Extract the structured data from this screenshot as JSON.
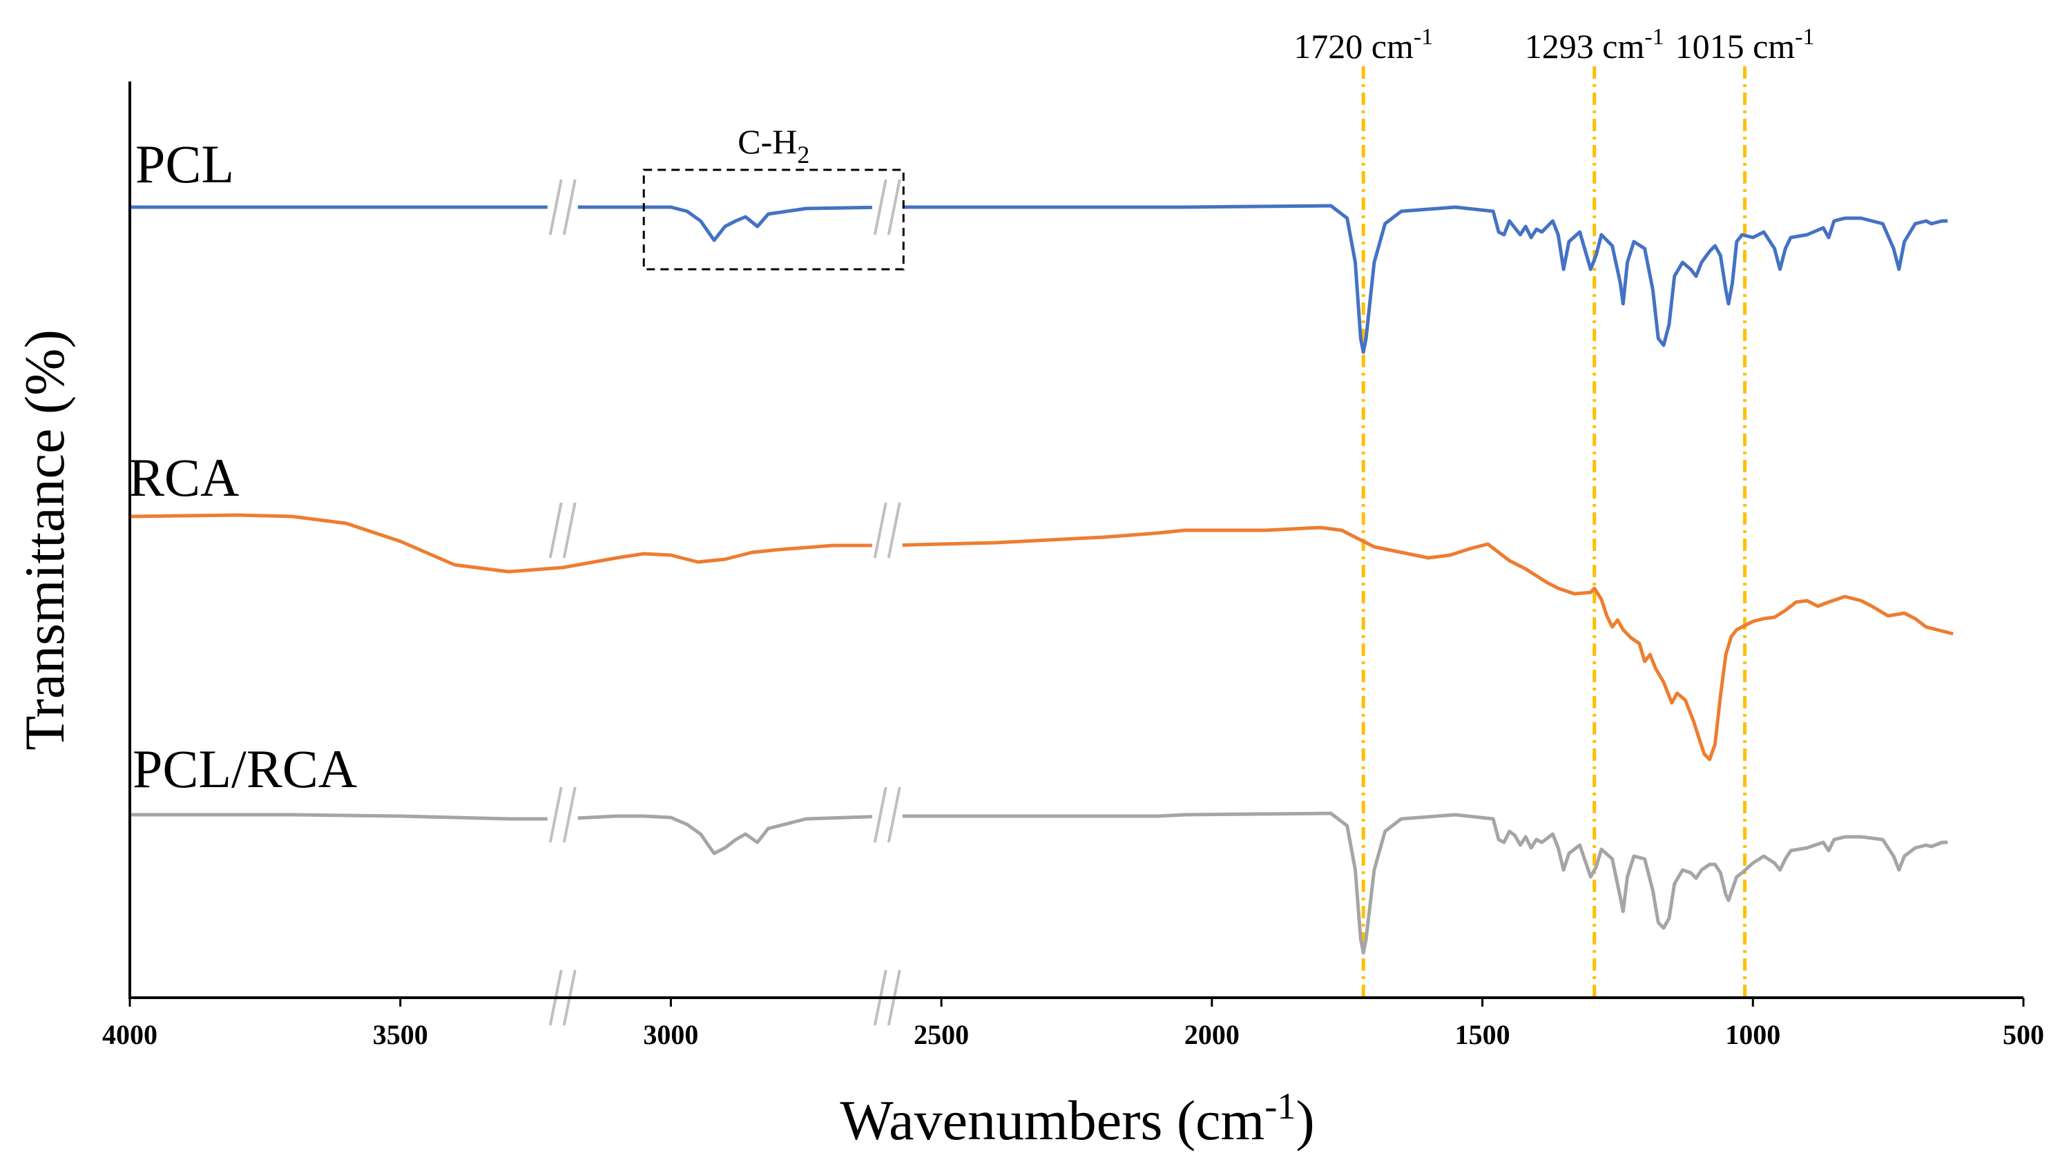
{
  "chart_data": {
    "type": "line",
    "title": "",
    "xlabel": "Wavenumbers (cm",
    "xlabel_sup": "-1",
    "xlabel_end": ")",
    "ylabel": "Transmittance (%)",
    "xlim": [
      4000,
      500
    ],
    "x_ticks": [
      "4000",
      "3500",
      "3000",
      "2500",
      "2000",
      "1500",
      "1000",
      "500"
    ],
    "y_axis": "arbitrary units, offset traces, no tick labels",
    "axis_breaks": [
      3200,
      2600
    ],
    "annotation": {
      "text": "C-H",
      "sub": "2",
      "range": [
        3050,
        2570
      ]
    },
    "peak_markers": [
      {
        "wavenumber": 1720,
        "label": "1720 cm",
        "sup": "-1"
      },
      {
        "wavenumber": 1293,
        "label": "1293 cm",
        "sup": "-1"
      },
      {
        "wavenumber": 1015,
        "label": "1015 cm",
        "sup": "-1"
      }
    ],
    "colors": {
      "PCL": "#4472C4",
      "RCA": "#ED7D31",
      "PCL/RCA": "#A5A5A5",
      "marker": "#FFC000"
    },
    "series": [
      {
        "name": "PCL",
        "baseline": 0,
        "points": [
          [
            4000,
            0
          ],
          [
            3280,
            0
          ],
          [
            3140,
            0
          ],
          [
            3000,
            0
          ],
          [
            2970,
            -3
          ],
          [
            2945,
            -10
          ],
          [
            2920,
            -24
          ],
          [
            2900,
            -14
          ],
          [
            2880,
            -10
          ],
          [
            2862,
            -7
          ],
          [
            2840,
            -14
          ],
          [
            2820,
            -5
          ],
          [
            2750,
            -1
          ],
          [
            2600,
            0
          ],
          [
            2480,
            0
          ],
          [
            2050,
            0
          ],
          [
            1780,
            1
          ],
          [
            1750,
            -8
          ],
          [
            1735,
            -40
          ],
          [
            1725,
            -95
          ],
          [
            1720,
            -105
          ],
          [
            1715,
            -95
          ],
          [
            1700,
            -40
          ],
          [
            1680,
            -12
          ],
          [
            1650,
            -3
          ],
          [
            1550,
            0
          ],
          [
            1480,
            -3
          ],
          [
            1470,
            -18
          ],
          [
            1460,
            -20
          ],
          [
            1450,
            -10
          ],
          [
            1440,
            -15
          ],
          [
            1430,
            -20
          ],
          [
            1420,
            -14
          ],
          [
            1410,
            -22
          ],
          [
            1400,
            -16
          ],
          [
            1390,
            -18
          ],
          [
            1370,
            -10
          ],
          [
            1360,
            -20
          ],
          [
            1350,
            -45
          ],
          [
            1340,
            -25
          ],
          [
            1320,
            -18
          ],
          [
            1300,
            -45
          ],
          [
            1290,
            -35
          ],
          [
            1280,
            -20
          ],
          [
            1260,
            -28
          ],
          [
            1245,
            -55
          ],
          [
            1240,
            -70
          ],
          [
            1232,
            -40
          ],
          [
            1220,
            -25
          ],
          [
            1200,
            -30
          ],
          [
            1185,
            -60
          ],
          [
            1175,
            -95
          ],
          [
            1165,
            -100
          ],
          [
            1155,
            -85
          ],
          [
            1145,
            -50
          ],
          [
            1130,
            -40
          ],
          [
            1115,
            -45
          ],
          [
            1105,
            -50
          ],
          [
            1095,
            -40
          ],
          [
            1080,
            -32
          ],
          [
            1070,
            -28
          ],
          [
            1060,
            -35
          ],
          [
            1050,
            -60
          ],
          [
            1045,
            -70
          ],
          [
            1038,
            -55
          ],
          [
            1030,
            -25
          ],
          [
            1020,
            -20
          ],
          [
            1000,
            -22
          ],
          [
            980,
            -18
          ],
          [
            960,
            -30
          ],
          [
            950,
            -45
          ],
          [
            940,
            -30
          ],
          [
            930,
            -22
          ],
          [
            900,
            -20
          ],
          [
            870,
            -15
          ],
          [
            860,
            -22
          ],
          [
            850,
            -10
          ],
          [
            830,
            -8
          ],
          [
            800,
            -8
          ],
          [
            760,
            -12
          ],
          [
            740,
            -30
          ],
          [
            730,
            -45
          ],
          [
            720,
            -25
          ],
          [
            700,
            -12
          ],
          [
            680,
            -10
          ],
          [
            670,
            -12
          ],
          [
            650,
            -10
          ],
          [
            640,
            -10
          ]
        ]
      },
      {
        "name": "RCA",
        "baseline": 0,
        "points": [
          [
            4000,
            0
          ],
          [
            3800,
            1
          ],
          [
            3700,
            0
          ],
          [
            3600,
            -5
          ],
          [
            3500,
            -18
          ],
          [
            3400,
            -35
          ],
          [
            3300,
            -40
          ],
          [
            3200,
            -37
          ],
          [
            3100,
            -30
          ],
          [
            3050,
            -27
          ],
          [
            3000,
            -28
          ],
          [
            2950,
            -33
          ],
          [
            2900,
            -31
          ],
          [
            2850,
            -26
          ],
          [
            2800,
            -24
          ],
          [
            2700,
            -21
          ],
          [
            2600,
            -21
          ],
          [
            2500,
            -20
          ],
          [
            2400,
            -19
          ],
          [
            2300,
            -17
          ],
          [
            2200,
            -15
          ],
          [
            2100,
            -12
          ],
          [
            2050,
            -10
          ],
          [
            1900,
            -10
          ],
          [
            1800,
            -8
          ],
          [
            1760,
            -10
          ],
          [
            1720,
            -18
          ],
          [
            1700,
            -22
          ],
          [
            1650,
            -26
          ],
          [
            1600,
            -30
          ],
          [
            1560,
            -28
          ],
          [
            1520,
            -23
          ],
          [
            1490,
            -20
          ],
          [
            1470,
            -26
          ],
          [
            1450,
            -32
          ],
          [
            1420,
            -38
          ],
          [
            1400,
            -43
          ],
          [
            1380,
            -48
          ],
          [
            1360,
            -52
          ],
          [
            1330,
            -56
          ],
          [
            1300,
            -55
          ],
          [
            1293,
            -52
          ],
          [
            1280,
            -60
          ],
          [
            1270,
            -72
          ],
          [
            1260,
            -80
          ],
          [
            1250,
            -75
          ],
          [
            1240,
            -82
          ],
          [
            1225,
            -88
          ],
          [
            1210,
            -92
          ],
          [
            1200,
            -105
          ],
          [
            1190,
            -100
          ],
          [
            1180,
            -110
          ],
          [
            1165,
            -120
          ],
          [
            1150,
            -135
          ],
          [
            1140,
            -128
          ],
          [
            1125,
            -133
          ],
          [
            1110,
            -148
          ],
          [
            1100,
            -160
          ],
          [
            1090,
            -172
          ],
          [
            1080,
            -176
          ],
          [
            1070,
            -165
          ],
          [
            1060,
            -130
          ],
          [
            1050,
            -100
          ],
          [
            1040,
            -87
          ],
          [
            1030,
            -82
          ],
          [
            1020,
            -80
          ],
          [
            1000,
            -76
          ],
          [
            980,
            -74
          ],
          [
            960,
            -73
          ],
          [
            940,
            -68
          ],
          [
            920,
            -62
          ],
          [
            900,
            -61
          ],
          [
            880,
            -65
          ],
          [
            860,
            -62
          ],
          [
            830,
            -58
          ],
          [
            800,
            -61
          ],
          [
            780,
            -65
          ],
          [
            750,
            -72
          ],
          [
            720,
            -70
          ],
          [
            700,
            -74
          ],
          [
            680,
            -80
          ],
          [
            650,
            -83
          ],
          [
            630,
            -85
          ]
        ]
      },
      {
        "name": "PCL/RCA",
        "baseline": 0,
        "points": [
          [
            4000,
            0
          ],
          [
            3700,
            0
          ],
          [
            3500,
            -1
          ],
          [
            3300,
            -3
          ],
          [
            3200,
            -3
          ],
          [
            3100,
            -1
          ],
          [
            3050,
            -1
          ],
          [
            3000,
            -2
          ],
          [
            2970,
            -7
          ],
          [
            2945,
            -14
          ],
          [
            2920,
            -28
          ],
          [
            2900,
            -24
          ],
          [
            2880,
            -18
          ],
          [
            2862,
            -14
          ],
          [
            2840,
            -20
          ],
          [
            2820,
            -10
          ],
          [
            2750,
            -3
          ],
          [
            2600,
            -1
          ],
          [
            2300,
            -1
          ],
          [
            2100,
            -1
          ],
          [
            2050,
            0
          ],
          [
            1780,
            1
          ],
          [
            1750,
            -8
          ],
          [
            1735,
            -40
          ],
          [
            1725,
            -90
          ],
          [
            1720,
            -100
          ],
          [
            1715,
            -90
          ],
          [
            1700,
            -40
          ],
          [
            1680,
            -12
          ],
          [
            1650,
            -3
          ],
          [
            1550,
            0
          ],
          [
            1480,
            -3
          ],
          [
            1470,
            -18
          ],
          [
            1460,
            -20
          ],
          [
            1450,
            -12
          ],
          [
            1440,
            -15
          ],
          [
            1430,
            -22
          ],
          [
            1420,
            -16
          ],
          [
            1410,
            -24
          ],
          [
            1400,
            -18
          ],
          [
            1390,
            -20
          ],
          [
            1370,
            -14
          ],
          [
            1360,
            -24
          ],
          [
            1350,
            -40
          ],
          [
            1340,
            -28
          ],
          [
            1320,
            -22
          ],
          [
            1300,
            -45
          ],
          [
            1290,
            -38
          ],
          [
            1280,
            -25
          ],
          [
            1260,
            -32
          ],
          [
            1245,
            -60
          ],
          [
            1240,
            -70
          ],
          [
            1232,
            -45
          ],
          [
            1220,
            -30
          ],
          [
            1200,
            -32
          ],
          [
            1185,
            -55
          ],
          [
            1175,
            -78
          ],
          [
            1165,
            -82
          ],
          [
            1155,
            -75
          ],
          [
            1145,
            -50
          ],
          [
            1130,
            -40
          ],
          [
            1115,
            -42
          ],
          [
            1105,
            -46
          ],
          [
            1095,
            -40
          ],
          [
            1080,
            -36
          ],
          [
            1070,
            -36
          ],
          [
            1060,
            -42
          ],
          [
            1050,
            -58
          ],
          [
            1045,
            -62
          ],
          [
            1038,
            -54
          ],
          [
            1030,
            -45
          ],
          [
            1020,
            -42
          ],
          [
            1000,
            -35
          ],
          [
            980,
            -30
          ],
          [
            960,
            -35
          ],
          [
            950,
            -40
          ],
          [
            940,
            -32
          ],
          [
            930,
            -26
          ],
          [
            900,
            -24
          ],
          [
            870,
            -20
          ],
          [
            860,
            -26
          ],
          [
            850,
            -18
          ],
          [
            830,
            -16
          ],
          [
            800,
            -16
          ],
          [
            760,
            -18
          ],
          [
            740,
            -30
          ],
          [
            730,
            -40
          ],
          [
            720,
            -30
          ],
          [
            700,
            -24
          ],
          [
            680,
            -22
          ],
          [
            670,
            -23
          ],
          [
            650,
            -20
          ],
          [
            640,
            -20
          ]
        ]
      }
    ]
  }
}
